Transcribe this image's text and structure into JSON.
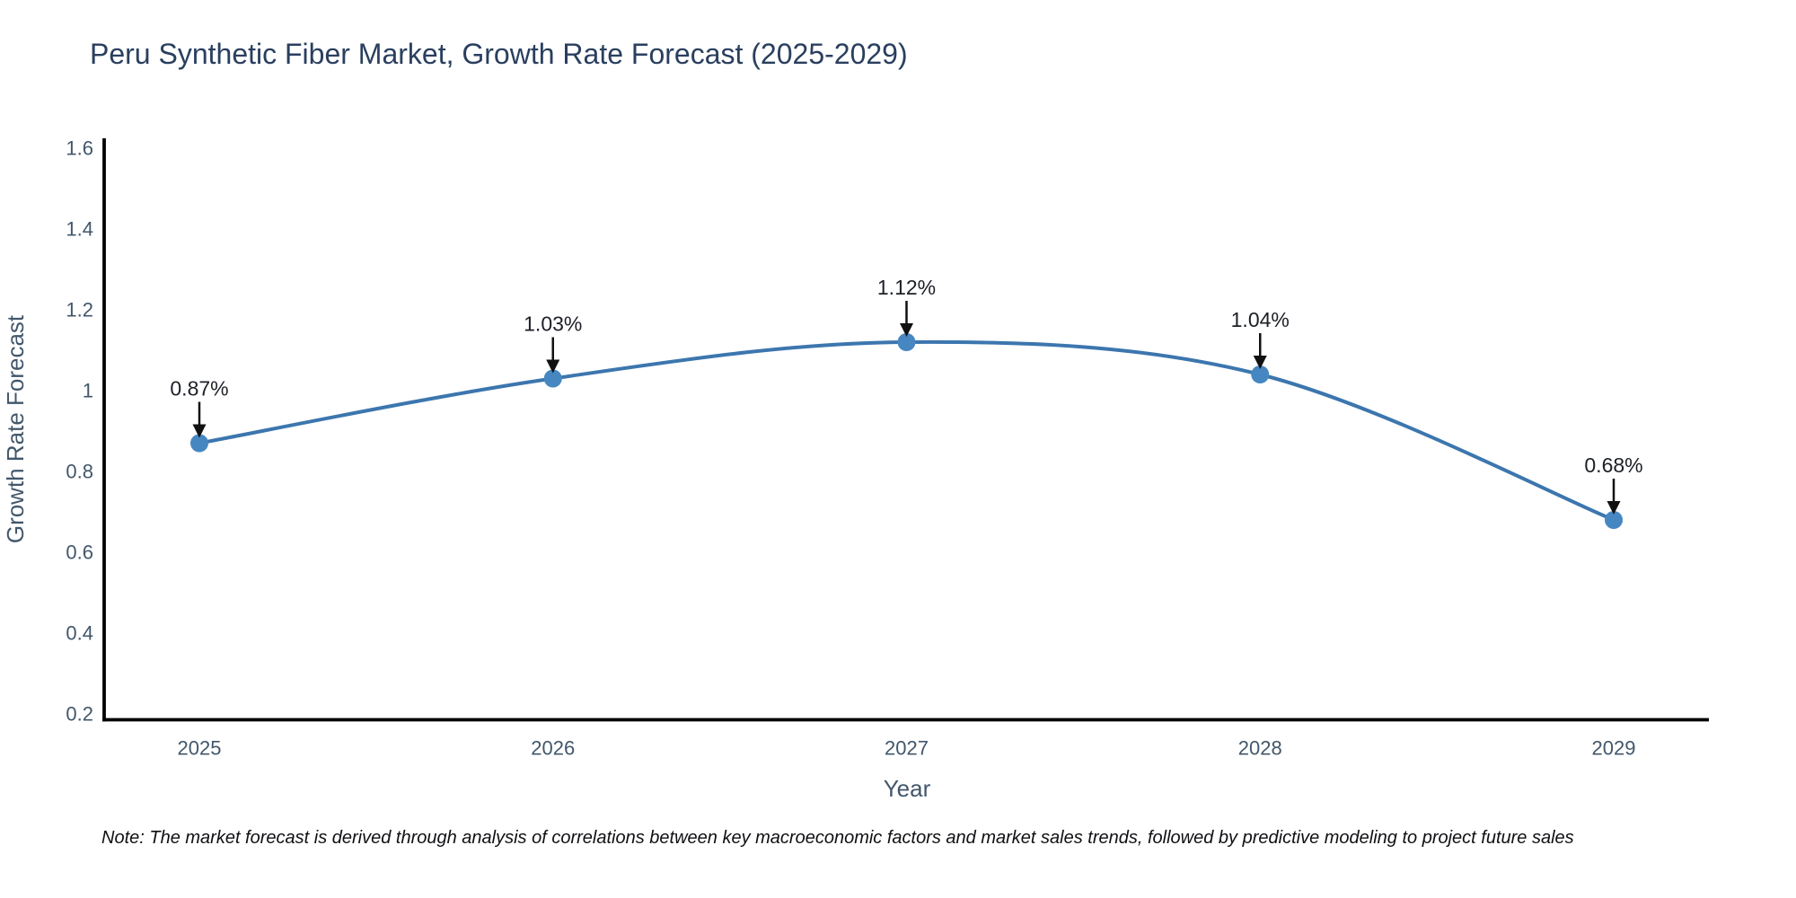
{
  "page": {
    "background": "#ffffff"
  },
  "chart_data": {
    "type": "line",
    "title": "Peru Synthetic Fiber Market, Growth Rate Forecast (2025-2029)",
    "xlabel": "Year",
    "ylabel": "Growth Rate Forecast",
    "categories": [
      "2025",
      "2026",
      "2027",
      "2028",
      "2029"
    ],
    "series": [
      {
        "name": "Growth Rate Forecast",
        "values": [
          0.87,
          1.03,
          1.12,
          1.04,
          0.68
        ]
      }
    ],
    "point_labels": [
      "0.87%",
      "1.03%",
      "1.12%",
      "1.04%",
      "0.68%"
    ],
    "yticks": [
      "0.2",
      "0.4",
      "0.6",
      "0.8",
      "1",
      "1.2",
      "1.4",
      "1.6"
    ],
    "ylim": [
      0.18,
      1.63
    ],
    "grid": false,
    "legend_position": "none",
    "curve": "spline",
    "line_color": "#3c76ae",
    "marker_color": "#4787c1",
    "annotation_arrow_color": "#111111",
    "annotation_text_color": "#1c2026",
    "axis_line_color": "#000000",
    "tick_label_color": "#42576b",
    "axis_title_color": "#42576b",
    "title_color": "#2a3f5f"
  },
  "note": {
    "text": "Note: The market forecast is derived through analysis of correlations between key macroeconomic factors and market sales trends, followed by predictive modeling to project future sales"
  }
}
